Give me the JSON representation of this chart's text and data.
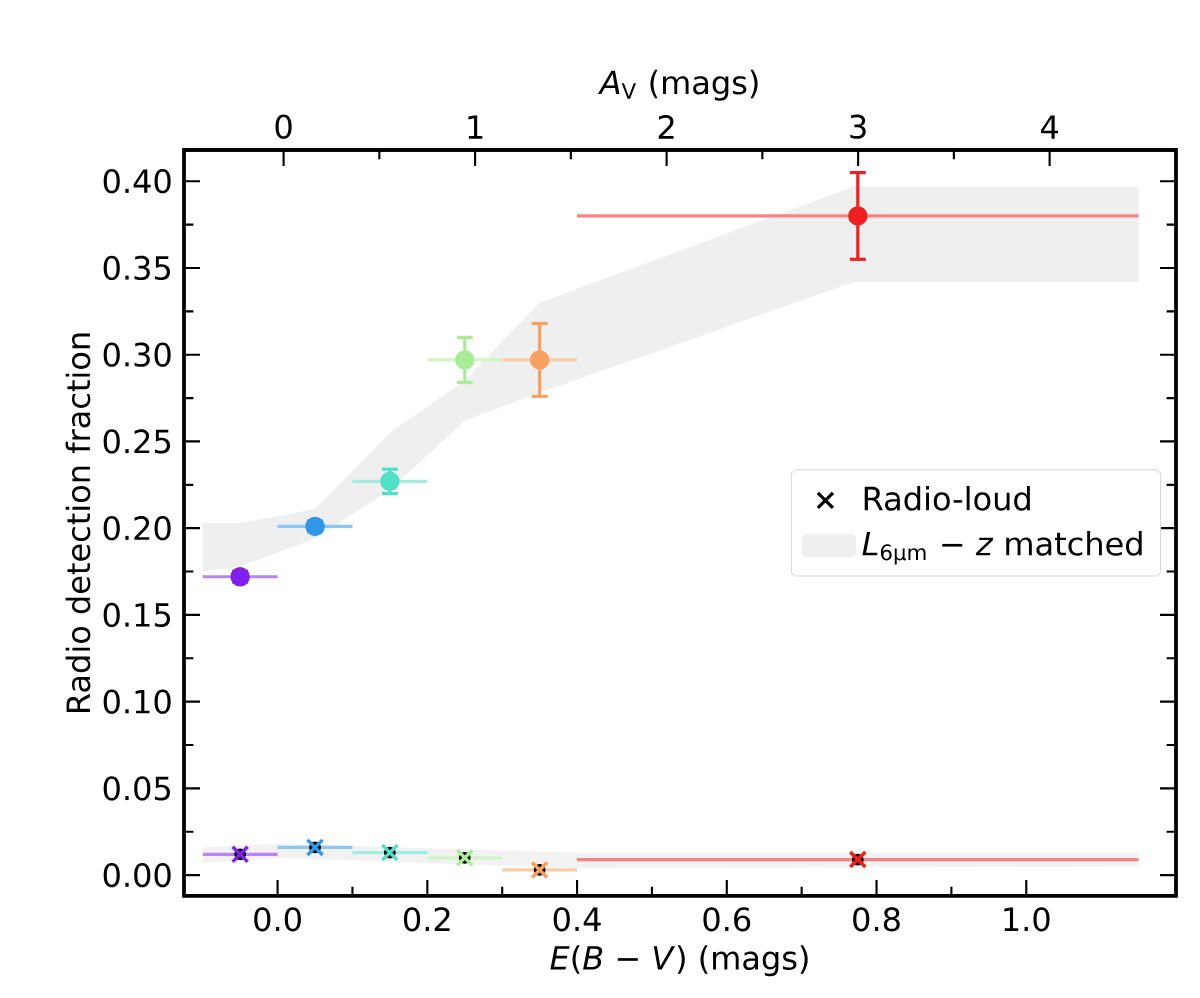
{
  "chart_data": {
    "type": "scatter",
    "xlabel": "*E*(*B* − *V*) (mags)",
    "ylabel": "Radio detection fraction",
    "x2label": "*A*$_{V}$ (mags)",
    "xlim": [
      -0.125,
      1.2
    ],
    "ylim": [
      -0.012,
      0.418
    ],
    "x2lim": [
      -0.52,
      4.66
    ],
    "xticks": [
      {
        "value": 0,
        "label": "0.0"
      },
      {
        "value": 0.2,
        "label": "0.2"
      },
      {
        "value": 0.4,
        "label": "0.4"
      },
      {
        "value": 0.6,
        "label": "0.6"
      },
      {
        "value": 0.8,
        "label": "0.8"
      },
      {
        "value": 1.0,
        "label": "1.0"
      }
    ],
    "yticks": [
      {
        "value": 0,
        "label": "0.00"
      },
      {
        "value": 0.05,
        "label": "0.05"
      },
      {
        "value": 0.1,
        "label": "0.10"
      },
      {
        "value": 0.15,
        "label": "0.15"
      },
      {
        "value": 0.2,
        "label": "0.20"
      },
      {
        "value": 0.25,
        "label": "0.25"
      },
      {
        "value": 0.3,
        "label": "0.30"
      },
      {
        "value": 0.35,
        "label": "0.35"
      },
      {
        "value": 0.4,
        "label": "0.40"
      }
    ],
    "x2ticks": [
      0,
      1,
      2,
      3,
      4
    ],
    "legend": "right",
    "series": [
      {
        "name": "*L*$_{6µm}$ − *z* matched",
        "type": "area",
        "color": "#efefef",
        "x": [
          -0.1,
          -0.05,
          0.05,
          0.15,
          0.25,
          0.35,
          0.77,
          1.15
        ],
        "values": [
          null,
          null,
          null,
          null,
          null,
          null,
          null,
          null
        ],
        "upper": [
          0.203,
          0.203,
          0.211,
          0.255,
          0.285,
          0.33,
          0.397,
          0.397
        ],
        "lower": [
          0.175,
          0.178,
          0.194,
          0.222,
          0.262,
          0.278,
          0.342,
          0.342
        ]
      },
      {
        "type": "area",
        "color": "#f2f2f2",
        "x": [
          -0.1,
          0.0,
          0.4,
          1.15
        ],
        "values": [
          null,
          null,
          null,
          null
        ],
        "upper": [
          0.016,
          0.018,
          0.013,
          0.013
        ],
        "lower": [
          0.007,
          0.01,
          0.004,
          0.005
        ]
      },
      {
        "marker": "circle",
        "x": [
          -0.05,
          0.05,
          0.15,
          0.25,
          0.35,
          0.775
        ],
        "values": [
          0.172,
          0.201,
          0.227,
          0.297,
          0.297,
          0.38
        ],
        "errors": [
          0.003,
          0.003,
          0.007,
          0.013,
          0.021,
          0.025
        ],
        "xerrors": [
          0.05,
          0.05,
          0.05,
          0.05,
          0.05,
          0.375
        ],
        "colors": [
          "#8020f0",
          "#3098e8",
          "#50e0c8",
          "#a8ec98",
          "#f8a060",
          "#f02020"
        ]
      },
      {
        "name": "Radio-loud",
        "marker": "cross",
        "x": [
          -0.05,
          0.05,
          0.15,
          0.25,
          0.35,
          0.775
        ],
        "values": [
          0.012,
          0.016,
          0.013,
          0.01,
          0.003,
          0.009
        ],
        "xerrors": [
          0.05,
          0.05,
          0.05,
          0.05,
          0.05,
          0.375
        ],
        "colors": [
          "#8020f0",
          "#3098e8",
          "#50e0c8",
          "#a8ec98",
          "#f8a060",
          "#f02020"
        ]
      }
    ]
  }
}
